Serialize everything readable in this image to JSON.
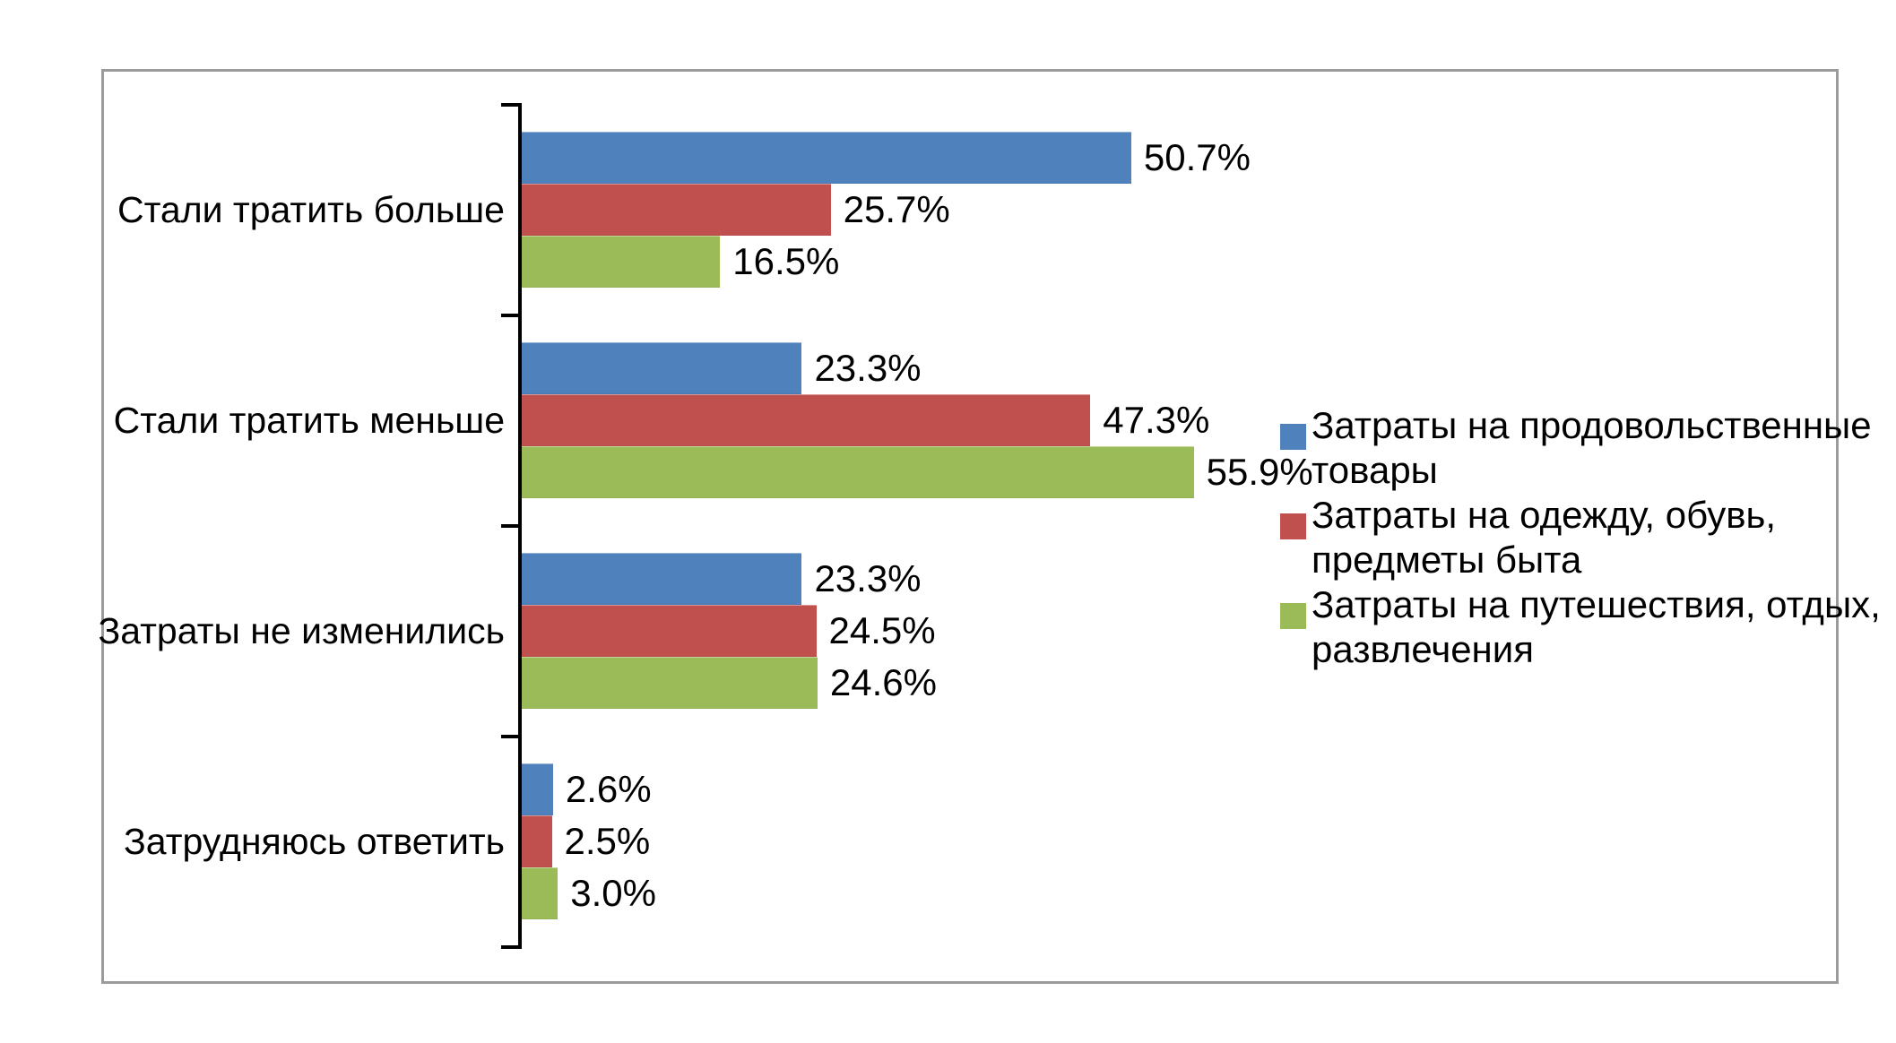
{
  "chart_data": {
    "type": "bar",
    "orientation": "horizontal",
    "title": "",
    "categories": [
      "Стали тратить больше",
      "Стали тратить меньше",
      "Затраты не изменились",
      "Затрудняюсь ответить"
    ],
    "series": [
      {
        "name": "Затраты на продовольственные товары",
        "legend_lines": [
          "Затраты на продовольственные",
          "товары"
        ],
        "color": "#4F81BD",
        "values": [
          50.7,
          23.3,
          23.3,
          2.6
        ],
        "labels": [
          "50.7%",
          "23.3%",
          "23.3%",
          "2.6%"
        ]
      },
      {
        "name": "Затраты на одежду, обувь, предметы быта",
        "legend_lines": [
          "Затраты на одежду, обувь,",
          "предметы быта"
        ],
        "color": "#C0504D",
        "values": [
          25.7,
          47.3,
          24.5,
          2.5
        ],
        "labels": [
          "25.7%",
          "47.3%",
          "24.5%",
          "2.5%"
        ]
      },
      {
        "name": "Затраты на путешествия, отдых, развлечения",
        "legend_lines": [
          "Затраты на путешествия, отдых,",
          "развлечения"
        ],
        "color": "#9BBB59",
        "values": [
          16.5,
          55.9,
          24.6,
          3.0
        ],
        "labels": [
          "16.5%",
          "55.9%",
          "24.6%",
          "3.0%"
        ]
      }
    ],
    "value_suffix": "%",
    "data_labels_shown": true,
    "xlim": [
      0,
      60
    ],
    "grid": false,
    "legend_position": "right"
  },
  "colors": {
    "background": "#ffffff",
    "frame_border": "#9b9b9b",
    "axis": "#000000",
    "text": "#000000"
  }
}
